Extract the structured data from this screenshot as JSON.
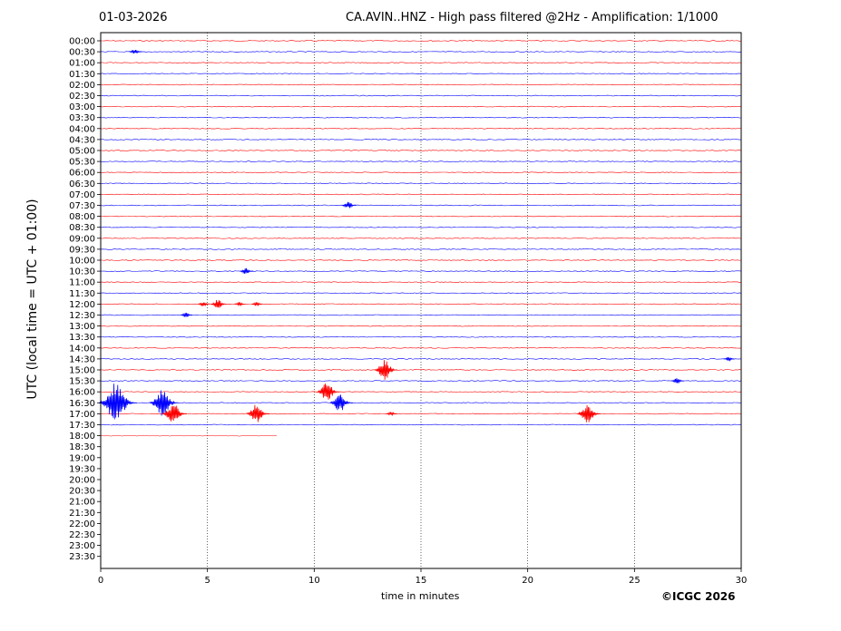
{
  "header": {
    "date": "01-03-2026",
    "title": "CA.AVIN..HNZ - High pass filtered @2Hz - Amplification: 1/1000"
  },
  "footer": {
    "copyright": "©ICGC 2026"
  },
  "chart_data": {
    "type": "line",
    "title": "CA.AVIN..HNZ - High pass filtered @2Hz - Amplification: 1/1000",
    "xlabel": "time in minutes",
    "ylabel": "UTC (local time = UTC + 01:00)",
    "xlim": [
      0,
      30
    ],
    "x_ticks": [
      "0",
      "5",
      "10",
      "15",
      "20",
      "25",
      "30"
    ],
    "row_labels": [
      "00:00",
      "00:30",
      "01:00",
      "01:30",
      "02:00",
      "02:30",
      "03:00",
      "03:30",
      "04:00",
      "04:30",
      "05:00",
      "05:30",
      "06:00",
      "06:30",
      "07:00",
      "07:30",
      "08:00",
      "08:30",
      "09:00",
      "09:30",
      "10:00",
      "10:30",
      "11:00",
      "11:30",
      "12:00",
      "12:30",
      "13:00",
      "13:30",
      "14:00",
      "14:30",
      "15:00",
      "15:30",
      "16:00",
      "16:30",
      "17:00",
      "17:30",
      "18:00",
      "18:30",
      "19:00",
      "19:30",
      "20:00",
      "20:30",
      "21:00",
      "21:30",
      "22:00",
      "22:30",
      "23:00",
      "23:30"
    ],
    "trace_colors": [
      "#ff0000",
      "#0000ff"
    ],
    "grid": "vertical dotted lines every 5 minutes",
    "recorded_until": {
      "row": "18:00",
      "minute": 8.3
    },
    "events": [
      {
        "row": "00:30",
        "minute": 1.6,
        "amplitude": 0.3
      },
      {
        "row": "07:30",
        "minute": 11.6,
        "amplitude": 0.4
      },
      {
        "row": "10:30",
        "minute": 6.8,
        "amplitude": 0.35
      },
      {
        "row": "12:00",
        "minute": 4.8,
        "amplitude": 0.25
      },
      {
        "row": "12:00",
        "minute": 5.5,
        "amplitude": 0.5
      },
      {
        "row": "12:00",
        "minute": 6.5,
        "amplitude": 0.2
      },
      {
        "row": "12:00",
        "minute": 7.3,
        "amplitude": 0.2
      },
      {
        "row": "12:30",
        "minute": 4.0,
        "amplitude": 0.25
      },
      {
        "row": "14:30",
        "minute": 29.4,
        "amplitude": 0.2
      },
      {
        "row": "15:00",
        "minute": 13.3,
        "amplitude": 1.0
      },
      {
        "row": "15:30",
        "minute": 27.0,
        "amplitude": 0.3
      },
      {
        "row": "16:00",
        "minute": 10.6,
        "amplitude": 1.0
      },
      {
        "row": "16:30",
        "minute": 0.7,
        "amplitude": 2.0
      },
      {
        "row": "16:30",
        "minute": 2.9,
        "amplitude": 1.4
      },
      {
        "row": "16:30",
        "minute": 11.2,
        "amplitude": 1.0
      },
      {
        "row": "17:00",
        "minute": 3.4,
        "amplitude": 1.1
      },
      {
        "row": "17:00",
        "minute": 7.3,
        "amplitude": 1.0
      },
      {
        "row": "17:00",
        "minute": 13.6,
        "amplitude": 0.2
      },
      {
        "row": "17:00",
        "minute": 22.8,
        "amplitude": 1.0
      }
    ]
  }
}
